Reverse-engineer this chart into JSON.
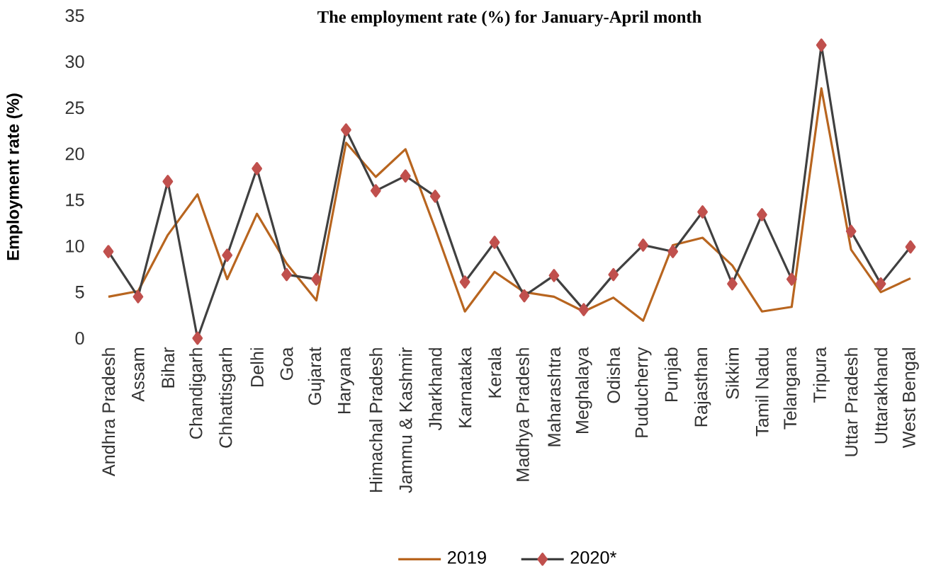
{
  "chart_data": {
    "type": "line",
    "title": "The employment rate (%) for January-April month",
    "ylabel": "Employment rate (%)",
    "categories": [
      "Andhra Pradesh",
      "Assam",
      "Bihar",
      "Chandigarh",
      "Chhattisgarh",
      "Delhi",
      "Goa",
      "Gujarat",
      "Haryana",
      "Himachal Pradesh",
      "Jammu & Kashmir",
      "Jharkhand",
      "Karnataka",
      "Kerala",
      "Madhya Pradesh",
      "Maharashtra",
      "Meghalaya",
      "Odisha",
      "Puducherry",
      "Punjab",
      "Rajasthan",
      "Sikkim",
      "Tamil Nadu",
      "Telangana",
      "Tripura",
      "Uttar Pradesh",
      "Uttarakhand",
      "West Bengal"
    ],
    "series": [
      {
        "name": "2019",
        "color": "#b8651f",
        "marker": "none",
        "values": [
          4.5,
          5.1,
          11.2,
          15.6,
          6.4,
          13.5,
          8.1,
          4.1,
          21.2,
          17.5,
          20.5,
          11.9,
          2.9,
          7.2,
          5.0,
          4.5,
          2.9,
          4.4,
          1.9,
          10.1,
          10.9,
          7.9,
          2.9,
          3.4,
          27.1,
          9.6,
          5.0,
          6.5
        ]
      },
      {
        "name": "2020*",
        "color": "#c0504d",
        "marker": "diamond",
        "values": [
          9.4,
          4.5,
          17.0,
          0,
          9.0,
          18.4,
          6.9,
          6.4,
          22.6,
          16.0,
          17.6,
          15.4,
          6.1,
          10.4,
          4.6,
          6.8,
          3.1,
          6.9,
          10.1,
          9.4,
          13.7,
          5.9,
          13.4,
          6.4,
          31.8,
          11.6,
          5.9,
          9.9
        ]
      }
    ],
    "ylim": [
      0,
      35
    ],
    "yticks": [
      0,
      5,
      10,
      15,
      20,
      25,
      30,
      35
    ],
    "grid": false,
    "legend": "bottom"
  }
}
